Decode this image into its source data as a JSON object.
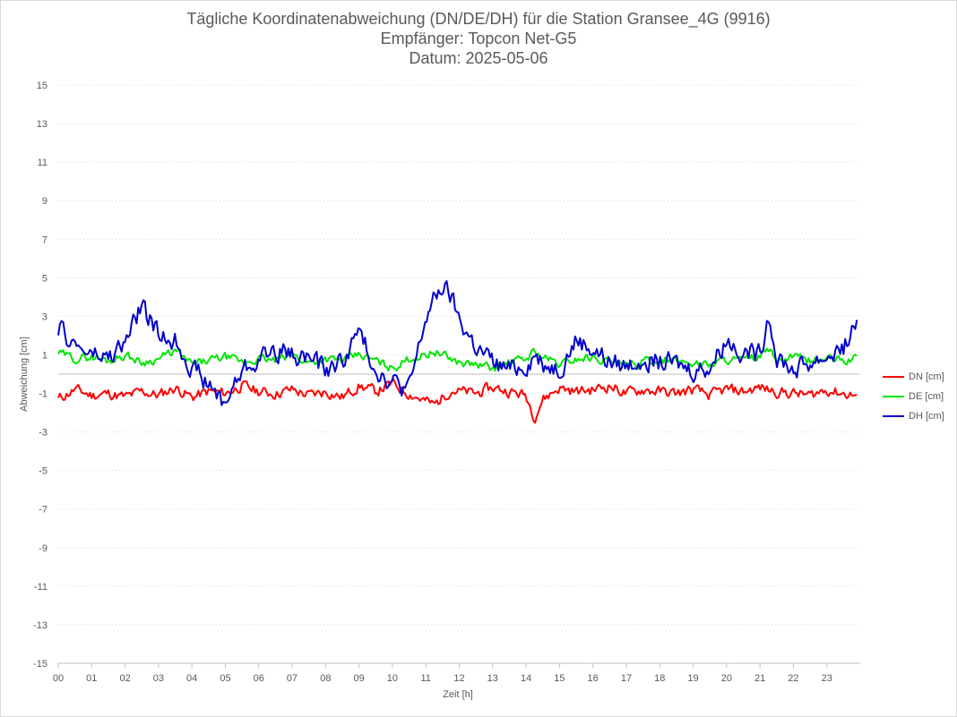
{
  "chart_data": {
    "type": "line",
    "title_lines": [
      "Tägliche Koordinatenabweichung (DN/DE/DH) für die Station Gransee_4G (9916)",
      "Empfänger: Topcon Net-G5",
      "Datum: 2025-05-06"
    ],
    "xlabel": "Zeit [h]",
    "ylabel": "Abweichung [cm]",
    "ylim": [
      -15,
      15
    ],
    "xlim": [
      0,
      24
    ],
    "y_ticks": [
      "15",
      "13",
      "11",
      "9",
      "7",
      "5",
      "3",
      "1",
      "-1",
      "-3",
      "-5",
      "-7",
      "-9",
      "-11",
      "-13",
      "-15"
    ],
    "x_ticks": [
      "00",
      "01",
      "02",
      "03",
      "04",
      "05",
      "06",
      "07",
      "08",
      "09",
      "10",
      "11",
      "12",
      "13",
      "14",
      "15",
      "16",
      "17",
      "18",
      "19",
      "20",
      "21",
      "22",
      "23"
    ],
    "grid": "horizontal dotted",
    "legend_position": "right",
    "x_hours": [
      0,
      0.5,
      1,
      1.5,
      2,
      2.5,
      3,
      3.5,
      4,
      4.5,
      5,
      5.5,
      6,
      6.5,
      7,
      7.5,
      8,
      8.5,
      9,
      9.5,
      10,
      10.5,
      11,
      11.25,
      11.5,
      11.75,
      12,
      12.5,
      13,
      13.5,
      14,
      14.25,
      14.5,
      15,
      15.5,
      16,
      16.5,
      17,
      17.5,
      18,
      18.5,
      19,
      19.5,
      20,
      20.5,
      21,
      21.25,
      21.5,
      22,
      22.5,
      23,
      23.5,
      23.9
    ],
    "series": [
      {
        "name": "DN [cm]",
        "color": "#ff0000",
        "values": [
          -1.3,
          -0.8,
          -1.1,
          -1.0,
          -1.2,
          -0.9,
          -1.1,
          -0.7,
          -1.2,
          -0.9,
          -1.0,
          -0.6,
          -0.9,
          -1.0,
          -0.8,
          -1.1,
          -0.9,
          -1.2,
          -0.6,
          -0.9,
          -0.5,
          -1.0,
          -1.4,
          -1.6,
          -1.2,
          -0.8,
          -0.9,
          -1.0,
          -0.7,
          -0.9,
          -1.1,
          -2.2,
          -1.3,
          -0.7,
          -0.9,
          -0.8,
          -0.6,
          -1.0,
          -0.8,
          -0.9,
          -1.0,
          -0.8,
          -1.1,
          -0.8,
          -0.9,
          -0.7,
          -0.8,
          -0.9,
          -1.0,
          -1.1,
          -0.8,
          -1.0,
          -1.1
        ]
      },
      {
        "name": "DE [cm]",
        "color": "#00e600",
        "values": [
          1.1,
          0.8,
          0.9,
          0.7,
          1.0,
          0.6,
          0.8,
          1.2,
          0.5,
          0.7,
          0.9,
          0.6,
          0.8,
          0.7,
          1.0,
          0.6,
          0.8,
          0.7,
          1.0,
          0.7,
          0.3,
          0.8,
          1.0,
          1.2,
          1.0,
          0.8,
          0.6,
          0.5,
          0.3,
          0.6,
          0.8,
          1.2,
          0.9,
          0.5,
          0.8,
          0.9,
          0.7,
          0.4,
          0.6,
          0.8,
          0.7,
          0.6,
          0.5,
          0.8,
          0.7,
          0.9,
          1.3,
          0.6,
          0.9,
          0.7,
          0.8,
          0.7,
          0.8
        ]
      },
      {
        "name": "DH [cm]",
        "color": "#0000cc",
        "values": [
          2.4,
          1.5,
          1.0,
          0.8,
          1.6,
          3.6,
          2.0,
          1.8,
          0.4,
          -0.6,
          -1.5,
          0.2,
          0.8,
          1.3,
          1.0,
          0.9,
          0.2,
          0.7,
          2.2,
          0.3,
          -0.4,
          -0.8,
          2.9,
          3.8,
          4.6,
          4.0,
          2.8,
          1.4,
          0.6,
          0.2,
          0.5,
          1.0,
          0.6,
          0.3,
          1.8,
          1.3,
          0.6,
          0.4,
          0.9,
          0.6,
          0.5,
          0.2,
          0.4,
          1.8,
          1.2,
          1.0,
          3.2,
          1.0,
          0.2,
          0.6,
          0.9,
          1.4,
          2.7
        ]
      }
    ]
  }
}
